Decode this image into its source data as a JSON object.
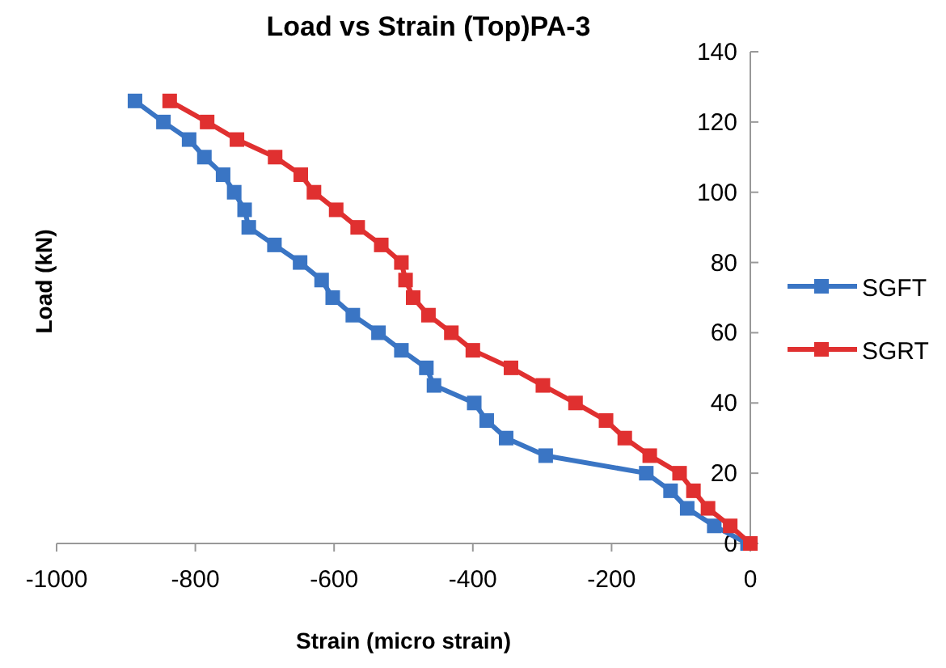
{
  "chart_data": {
    "type": "line",
    "title": "Load vs Strain (Top)PA-3",
    "xlabel": "Strain (micro strain)",
    "ylabel": "Load (kN)",
    "xlim": [
      -1000,
      0
    ],
    "xticks": [
      -1000,
      -800,
      -600,
      -400,
      -200,
      0
    ],
    "ylim": [
      0,
      140
    ],
    "yticks": [
      0,
      20,
      40,
      60,
      80,
      100,
      120,
      140
    ],
    "grid": false,
    "legend": "right",
    "marker": "square",
    "line_style": "solid",
    "series": [
      {
        "name": "SGFT",
        "color": "#3a75c4",
        "x": [
          -887,
          -846,
          -809,
          -787,
          -760,
          -744,
          -729,
          -723,
          -686,
          -649,
          -618,
          -602,
          -573,
          -536,
          -503,
          -467,
          -456,
          -398,
          -380,
          -352,
          -295,
          -150,
          -115,
          -91,
          -52,
          -4
        ],
        "values": [
          126,
          120,
          115,
          110,
          105,
          100,
          95,
          90,
          85,
          80,
          75,
          70,
          65,
          60,
          55,
          50,
          45,
          40,
          35,
          30,
          25,
          20,
          15,
          10,
          5,
          0
        ]
      },
      {
        "name": "SGRT",
        "color": "#e03030",
        "x": [
          -837,
          -783,
          -740,
          -685,
          -648,
          -629,
          -597,
          -566,
          -532,
          -503,
          -497,
          -486,
          -464,
          -431,
          -400,
          -345,
          -299,
          -252,
          -208,
          -181,
          -145,
          -102,
          -82,
          -61,
          -29,
          0
        ],
        "values": [
          126,
          120,
          115,
          110,
          105,
          100,
          95,
          90,
          85,
          80,
          75,
          70,
          65,
          60,
          55,
          50,
          45,
          40,
          35,
          30,
          25,
          20,
          15,
          10,
          5,
          0
        ]
      }
    ]
  }
}
